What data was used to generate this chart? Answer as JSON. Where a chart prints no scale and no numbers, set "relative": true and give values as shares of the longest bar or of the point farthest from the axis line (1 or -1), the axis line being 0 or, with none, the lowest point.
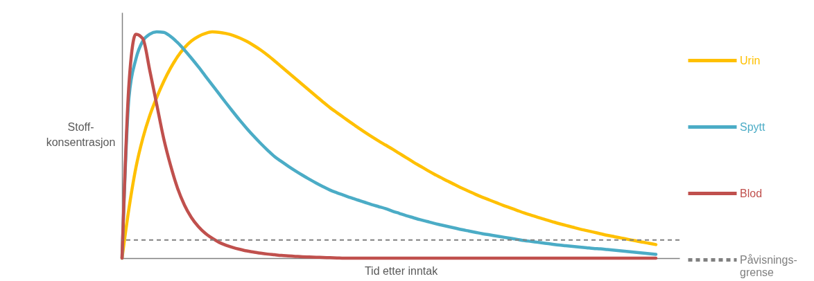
{
  "chart_data": {
    "type": "line",
    "relative": true,
    "xlabel": "Tid etter inntak",
    "ylabel": "Stoff-konsentrasjon",
    "tick_labels": false,
    "grid": false,
    "legend": "right",
    "line_style": "solid",
    "marker": "none",
    "categories": [
      null,
      null,
      null,
      null,
      null,
      null,
      null,
      null,
      null,
      null,
      null,
      null,
      null,
      null,
      null,
      null,
      null,
      null,
      null,
      null,
      null,
      null,
      null,
      null,
      null,
      null,
      null,
      null,
      null,
      null,
      null,
      null,
      null,
      null,
      null,
      null,
      null,
      null,
      null,
      null,
      null,
      null,
      null,
      null,
      null,
      null,
      null,
      null,
      null,
      null,
      null,
      null,
      null,
      null,
      null,
      null,
      null,
      null,
      null,
      null,
      null,
      null,
      null,
      null,
      null,
      null,
      null,
      null,
      null,
      null,
      null,
      null,
      null,
      null,
      null,
      null,
      null,
      null
    ],
    "series": [
      {
        "name": "Urin",
        "color": "#ffc000",
        "values": [
          0,
          0.22,
          0.4,
          0.53,
          0.63,
          0.71,
          0.78,
          0.84,
          0.89,
          0.93,
          0.96,
          0.98,
          0.993,
          1,
          0.998,
          0.993,
          0.985,
          0.973,
          0.958,
          0.94,
          0.92,
          0.897,
          0.872,
          0.846,
          0.82,
          0.794,
          0.768,
          0.742,
          0.716,
          0.69,
          0.665,
          0.643,
          0.621,
          0.599,
          0.578,
          0.557,
          0.537,
          0.518,
          0.5,
          0.482,
          0.463,
          0.444,
          0.425,
          0.407,
          0.389,
          0.372,
          0.356,
          0.34,
          0.325,
          0.31,
          0.296,
          0.282,
          0.269,
          0.257,
          0.245,
          0.233,
          0.222,
          0.211,
          0.2,
          0.19,
          0.18,
          0.171,
          0.162,
          0.153,
          0.145,
          0.137,
          0.129,
          0.122,
          0.115,
          0.108,
          0.101,
          0.095,
          0.089,
          0.083,
          0.077,
          0.071,
          0.066,
          0.06
        ]
      },
      {
        "name": "Spytt",
        "color": "#4bacc6",
        "values": [
          0,
          0.71,
          0.88,
          0.96,
          0.99,
          1,
          0.998,
          0.98,
          0.953,
          0.92,
          0.884,
          0.846,
          0.806,
          0.766,
          0.726,
          0.686,
          0.647,
          0.609,
          0.573,
          0.539,
          0.507,
          0.477,
          0.449,
          0.427,
          0.406,
          0.386,
          0.367,
          0.349,
          0.332,
          0.316,
          0.301,
          0.289,
          0.278,
          0.267,
          0.257,
          0.247,
          0.237,
          0.228,
          0.219,
          0.208,
          0.198,
          0.188,
          0.179,
          0.17,
          0.162,
          0.154,
          0.147,
          0.14,
          0.133,
          0.126,
          0.12,
          0.114,
          0.108,
          0.103,
          0.098,
          0.093,
          0.088,
          0.083,
          0.078,
          0.074,
          0.07,
          0.066,
          0.062,
          0.058,
          0.055,
          0.052,
          0.049,
          0.046,
          0.043,
          0.041,
          0.038,
          0.035,
          0.032,
          0.029,
          0.026,
          0.023,
          0.02,
          0.017
        ]
      },
      {
        "name": "Blod",
        "color": "#c0504d",
        "values": [
          0,
          0.77,
          0.99,
          0.97,
          0.83,
          0.68,
          0.53,
          0.41,
          0.31,
          0.235,
          0.18,
          0.14,
          0.11,
          0.088,
          0.07,
          0.057,
          0.047,
          0.039,
          0.032,
          0.027,
          0.022,
          0.018,
          0.015,
          0.012,
          0.01,
          0.008,
          0.006,
          0.005,
          0.004,
          0.003,
          0.002,
          0.001,
          0,
          0,
          0,
          0,
          0,
          0,
          0,
          0,
          0,
          0,
          0,
          0,
          0,
          0,
          0,
          0,
          0,
          0,
          0,
          0,
          0,
          0,
          0,
          0,
          0,
          0,
          0,
          0,
          0,
          0,
          0,
          0,
          0,
          0,
          0,
          0,
          0,
          0,
          0,
          0,
          0,
          0,
          0,
          0,
          0,
          0
        ]
      }
    ],
    "ref_lines": [
      {
        "axis": "y",
        "value": 0.08,
        "label": "Påvisnings-grense",
        "color": "#808080",
        "line_style": "dashed"
      }
    ]
  }
}
